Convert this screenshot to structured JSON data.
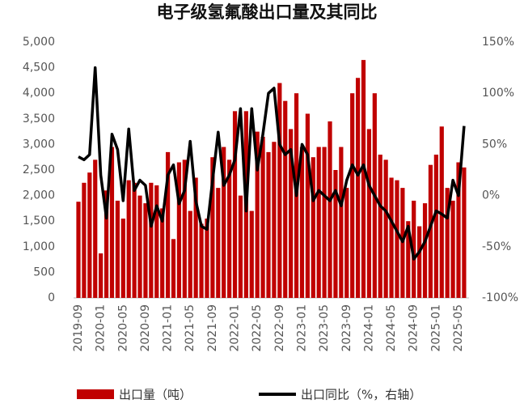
{
  "chart_data": {
    "type": "bar",
    "title": "电子级氢氟酸出口量及其同比",
    "categories": [
      "2019-09",
      null,
      null,
      null,
      "2020-01",
      null,
      null,
      null,
      "2020-05",
      null,
      null,
      null,
      "2020-09",
      null,
      null,
      null,
      "2021-01",
      null,
      null,
      null,
      "2021-05",
      null,
      null,
      null,
      "2021-09",
      null,
      null,
      null,
      "2022-01",
      null,
      null,
      null,
      "2022-05",
      null,
      null,
      null,
      "2022-09",
      null,
      null,
      null,
      "2023-01",
      null,
      null,
      null,
      "2023-05",
      null,
      null,
      null,
      "2023-09",
      null,
      null,
      null,
      "2024-01",
      null,
      null,
      null,
      "2024-05",
      null,
      null,
      null,
      "2024-09",
      null,
      null,
      null,
      "2025-01",
      null,
      null,
      null,
      "2025-05",
      null
    ],
    "series": [
      {
        "name": "出口量（吨）",
        "type": "bar",
        "color": "#c00000",
        "values": [
          1880,
          2250,
          2450,
          2700,
          870,
          2100,
          2950,
          1900,
          1550,
          2300,
          2250,
          2000,
          1850,
          2250,
          2200,
          1750,
          2850,
          1150,
          2650,
          2700,
          1700,
          2350,
          1450,
          1550,
          2750,
          2150,
          2950,
          2700,
          3650,
          2000,
          3650,
          1700,
          3250,
          3150,
          2850,
          3050,
          4200,
          3850,
          3300,
          4000,
          2950,
          3600,
          2750,
          2950,
          2950,
          3450,
          2500,
          2950,
          2150,
          4000,
          4300,
          4650,
          3300,
          4000,
          2800,
          2700,
          2350,
          2300,
          2150,
          1500,
          1900,
          1400,
          1850,
          2600,
          2800,
          3350,
          2150,
          1900,
          2650,
          2550
        ]
      },
      {
        "name": "出口同比（%，右轴）",
        "type": "line",
        "axis": "y2",
        "color": "#000000",
        "values": [
          38,
          35,
          40,
          125,
          20,
          -22,
          60,
          45,
          -5,
          65,
          5,
          15,
          10,
          -30,
          -10,
          -25,
          20,
          30,
          -8,
          5,
          53,
          -5,
          -30,
          -33,
          15,
          62,
          10,
          20,
          35,
          85,
          -15,
          85,
          25,
          60,
          100,
          105,
          50,
          40,
          45,
          0,
          50,
          40,
          -5,
          5,
          0,
          -5,
          5,
          -10,
          15,
          30,
          20,
          30,
          10,
          0,
          -10,
          -15,
          -25,
          -35,
          -45,
          -30,
          -62,
          -55,
          -45,
          -30,
          -15,
          -18,
          -22,
          15,
          0,
          68
        ]
      }
    ],
    "ylim": [
      0,
      5000
    ],
    "yticks": [
      0,
      500,
      {
        "value": 1000,
        "label": "1,000"
      },
      {
        "value": 1500,
        "label": "1,500"
      },
      {
        "value": 2000,
        "label": "2,000"
      },
      {
        "value": 2500,
        "label": "2,500"
      },
      {
        "value": 3000,
        "label": "3,000"
      },
      {
        "value": 3500,
        "label": "3,500"
      },
      {
        "value": 4000,
        "label": "4,000"
      },
      {
        "value": 4500,
        "label": "4,500"
      },
      {
        "value": 5000,
        "label": "5,000"
      }
    ],
    "y2lim": [
      -100,
      150
    ],
    "y2ticks": [
      {
        "value": -100,
        "label": "-100%"
      },
      {
        "value": -50,
        "label": "-50%"
      },
      {
        "value": 0,
        "label": "0%"
      },
      {
        "value": 50,
        "label": "50%"
      },
      {
        "value": 100,
        "label": "100%"
      },
      {
        "value": 150,
        "label": "150%"
      }
    ]
  }
}
